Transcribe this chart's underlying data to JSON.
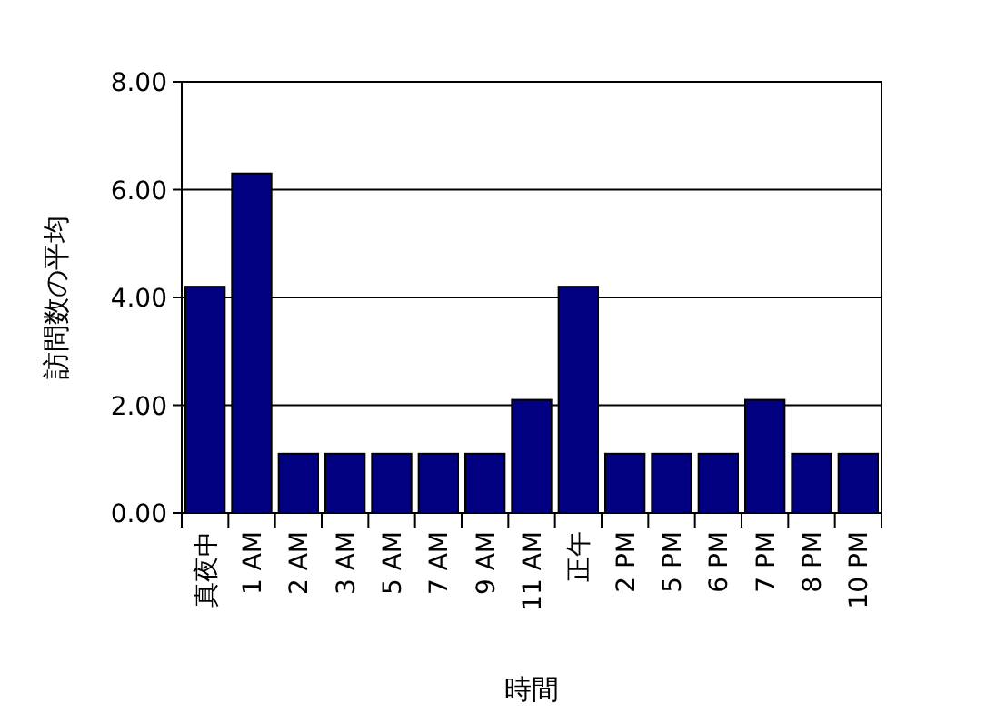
{
  "chart_data": {
    "type": "bar",
    "categories": [
      "真夜中",
      "1 AM",
      "2 AM",
      "3 AM",
      "5 AM",
      "7 AM",
      "9 AM",
      "11 AM",
      "正午",
      "2 PM",
      "5 PM",
      "6 PM",
      "7 PM",
      "8 PM",
      "10 PM"
    ],
    "values": [
      4.2,
      6.3,
      1.1,
      1.1,
      1.1,
      1.1,
      1.1,
      2.1,
      4.2,
      1.1,
      1.1,
      1.1,
      2.1,
      1.1,
      1.1
    ],
    "color": "#000080",
    "xlabel": "時間",
    "ylabel": "訪問数の平均",
    "ylim": [
      0,
      8
    ],
    "yticks": [
      {
        "value": 0,
        "label": "0.00"
      },
      {
        "value": 2,
        "label": "2.00"
      },
      {
        "value": 4,
        "label": "4.00"
      },
      {
        "value": 6,
        "label": "6.00"
      },
      {
        "value": 8,
        "label": "8.00"
      }
    ],
    "grid": "y"
  }
}
